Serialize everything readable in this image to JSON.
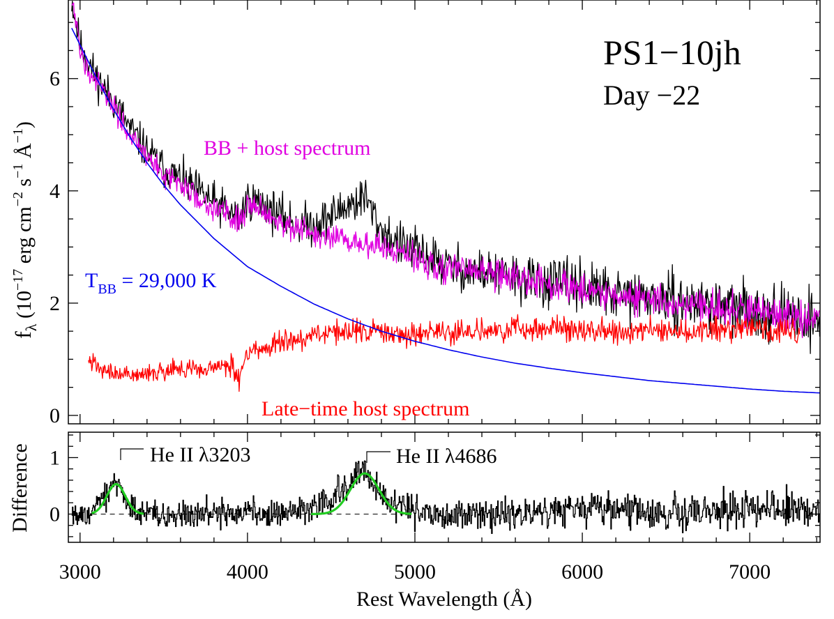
{
  "colors": {
    "observed": "#000000",
    "model": "#e000e0",
    "host": "#ff0000",
    "blackbody": "#0000ee",
    "fit": "#22cc22",
    "zero_line": "#000000"
  },
  "chart_data": [
    {
      "type": "line",
      "panel": "top",
      "title": "PS1−10jh",
      "subtitle": "Day −22",
      "xlabel": "Rest Wavelength (Å)",
      "ylabel": {
        "symbol": "f",
        "symbol_sub": "λ",
        "text": "(10",
        "exp1": "−17",
        "text2": " erg cm",
        "exp2": "−2",
        "text3": " s",
        "exp3": "−1",
        "text4": " Å",
        "exp4": "−1",
        "text5": ")"
      },
      "xlim": [
        2930,
        7420
      ],
      "ylim": [
        -0.15,
        7.4
      ],
      "yticks": [
        0,
        2,
        4,
        6
      ],
      "ytick_labels": [
        "0",
        "2",
        "4",
        "6"
      ],
      "xticks": [
        3000,
        4000,
        5000,
        6000,
        7000
      ],
      "xtick_labels": [
        "3000",
        "4000",
        "5000",
        "6000",
        "7000"
      ],
      "annotations": {
        "model_label": "BB + host spectrum",
        "bb_label_main": "T",
        "bb_label_sub": "BB",
        "bb_label_rest": " = 29,000 K",
        "host_label": "Late−time host spectrum"
      },
      "series": [
        {
          "name": "Observed spectrum",
          "color_key": "observed",
          "style": "noisy",
          "x": [
            2950,
            3000,
            3100,
            3200,
            3300,
            3400,
            3500,
            3600,
            3700,
            3800,
            3900,
            3950,
            4000,
            4100,
            4200,
            4300,
            4400,
            4500,
            4600,
            4650,
            4700,
            4750,
            4800,
            4900,
            5000,
            5100,
            5200,
            5300,
            5400,
            5500,
            5600,
            5700,
            5800,
            5900,
            6000,
            6100,
            6200,
            6300,
            6400,
            6500,
            6600,
            6700,
            6800,
            6900,
            7000,
            7100,
            7200,
            7300,
            7420
          ],
          "y": [
            7.4,
            6.6,
            6.0,
            5.6,
            5.1,
            4.7,
            4.4,
            4.2,
            4.0,
            3.8,
            3.6,
            3.5,
            3.85,
            3.75,
            3.55,
            3.4,
            3.4,
            3.55,
            3.75,
            3.8,
            3.9,
            3.6,
            3.3,
            3.05,
            2.95,
            2.8,
            2.65,
            2.6,
            2.55,
            2.5,
            2.45,
            2.4,
            2.35,
            2.35,
            2.3,
            2.2,
            2.15,
            2.1,
            2.1,
            2.05,
            2.0,
            2.0,
            1.95,
            1.9,
            1.9,
            1.85,
            1.8,
            1.75,
            1.7
          ],
          "noise": 0.2
        },
        {
          "name": "BB + host spectrum",
          "color_key": "model",
          "style": "noisy",
          "x": [
            2950,
            3000,
            3100,
            3200,
            3300,
            3400,
            3500,
            3600,
            3700,
            3800,
            3900,
            3950,
            4000,
            4100,
            4200,
            4300,
            4400,
            4500,
            4600,
            4700,
            4800,
            4900,
            5000,
            5100,
            5200,
            5300,
            5400,
            5500,
            5600,
            5700,
            5800,
            5900,
            6000,
            6100,
            6200,
            6300,
            6400,
            6500,
            6600,
            6700,
            6800,
            6900,
            7000,
            7100,
            7200,
            7300,
            7420
          ],
          "y": [
            7.4,
            6.5,
            5.9,
            5.5,
            5.0,
            4.6,
            4.3,
            4.1,
            3.9,
            3.7,
            3.55,
            3.45,
            3.8,
            3.65,
            3.45,
            3.3,
            3.2,
            3.15,
            3.1,
            3.05,
            3.0,
            2.9,
            2.8,
            2.7,
            2.6,
            2.6,
            2.55,
            2.5,
            2.45,
            2.4,
            2.35,
            2.3,
            2.25,
            2.2,
            2.15,
            2.1,
            2.05,
            2.0,
            2.0,
            1.95,
            1.9,
            1.9,
            1.85,
            1.85,
            1.8,
            1.75,
            1.75
          ],
          "noise": 0.13
        },
        {
          "name": "Late-time host spectrum",
          "color_key": "host",
          "style": "noisy",
          "x": [
            3050,
            3100,
            3200,
            3300,
            3400,
            3500,
            3600,
            3700,
            3800,
            3900,
            3950,
            4000,
            4100,
            4200,
            4300,
            4400,
            4500,
            4600,
            4700,
            4800,
            4900,
            5000,
            5100,
            5200,
            5300,
            5400,
            5500,
            5600,
            5700,
            5800,
            5900,
            6000,
            6100,
            6200,
            6300,
            6400,
            6500,
            6600,
            6700,
            6800,
            6900,
            7000,
            7100,
            7200,
            7300
          ],
          "y": [
            1.0,
            0.85,
            0.75,
            0.75,
            0.75,
            0.8,
            0.85,
            0.8,
            0.85,
            0.9,
            0.65,
            1.15,
            1.2,
            1.3,
            1.35,
            1.45,
            1.5,
            1.5,
            1.5,
            1.5,
            1.45,
            1.45,
            1.5,
            1.45,
            1.5,
            1.55,
            1.5,
            1.55,
            1.5,
            1.55,
            1.55,
            1.5,
            1.55,
            1.5,
            1.5,
            1.55,
            1.5,
            1.5,
            1.55,
            1.5,
            1.5,
            1.55,
            1.5,
            1.5,
            1.5
          ],
          "noise": 0.1
        },
        {
          "name": "Blackbody T_BB = 29,000 K",
          "color_key": "blackbody",
          "style": "smooth",
          "x": [
            2950,
            3000,
            3100,
            3200,
            3300,
            3400,
            3500,
            3600,
            3800,
            4000,
            4200,
            4400,
            4600,
            4800,
            5000,
            5200,
            5400,
            5600,
            5800,
            6000,
            6200,
            6400,
            6600,
            6800,
            7000,
            7200,
            7420
          ],
          "y": [
            6.9,
            6.6,
            6.0,
            5.45,
            4.95,
            4.5,
            4.1,
            3.75,
            3.15,
            2.65,
            2.3,
            1.98,
            1.72,
            1.5,
            1.32,
            1.17,
            1.04,
            0.93,
            0.84,
            0.76,
            0.69,
            0.62,
            0.57,
            0.52,
            0.47,
            0.43,
            0.4
          ]
        }
      ]
    },
    {
      "type": "line",
      "panel": "bottom",
      "ylabel": "Difference",
      "xlim": [
        2930,
        7420
      ],
      "ylim": [
        -0.5,
        1.45
      ],
      "yticks": [
        0,
        1
      ],
      "ytick_labels": [
        "0",
        "1"
      ],
      "annotations": {
        "line1_label": "He II λ3203",
        "line1_wavelength": 3203,
        "line2_label": "He II λ4686",
        "line2_wavelength": 4686
      },
      "series": [
        {
          "name": "Difference spectrum",
          "color_key": "observed",
          "style": "noisy-step",
          "x": [
            2950,
            3050,
            3150,
            3200,
            3250,
            3300,
            3400,
            3500,
            3700,
            3900,
            4100,
            4300,
            4400,
            4500,
            4600,
            4650,
            4700,
            4750,
            4800,
            4850,
            4900,
            5000,
            5200,
            5500,
            5800,
            6100,
            6400,
            6600,
            6800,
            7000,
            7200,
            7420
          ],
          "y": [
            -0.1,
            0.0,
            0.3,
            0.6,
            0.4,
            0.1,
            0.05,
            0.0,
            0.0,
            0.0,
            0.0,
            0.05,
            0.15,
            0.3,
            0.55,
            0.7,
            0.75,
            0.6,
            0.4,
            0.25,
            0.1,
            0.05,
            0.0,
            0.0,
            0.05,
            0.05,
            0.05,
            0.05,
            0.05,
            0.1,
            0.1,
            0.1
          ],
          "noise": 0.14
        },
        {
          "name": "Gaussian fit He II 3203",
          "color_key": "fit",
          "style": "gauss",
          "center": 3215,
          "amplitude": 0.53,
          "sigma": 55,
          "xrange": [
            3070,
            3380
          ]
        },
        {
          "name": "Gaussian fit He II 4686",
          "color_key": "fit",
          "style": "gauss",
          "center": 4700,
          "amplitude": 0.72,
          "sigma": 85,
          "xrange": [
            4380,
            4980
          ]
        },
        {
          "name": "Zero level",
          "color_key": "zero_line",
          "style": "dashed",
          "x": [
            3070,
            4980
          ],
          "y": [
            0,
            0
          ]
        }
      ]
    }
  ]
}
